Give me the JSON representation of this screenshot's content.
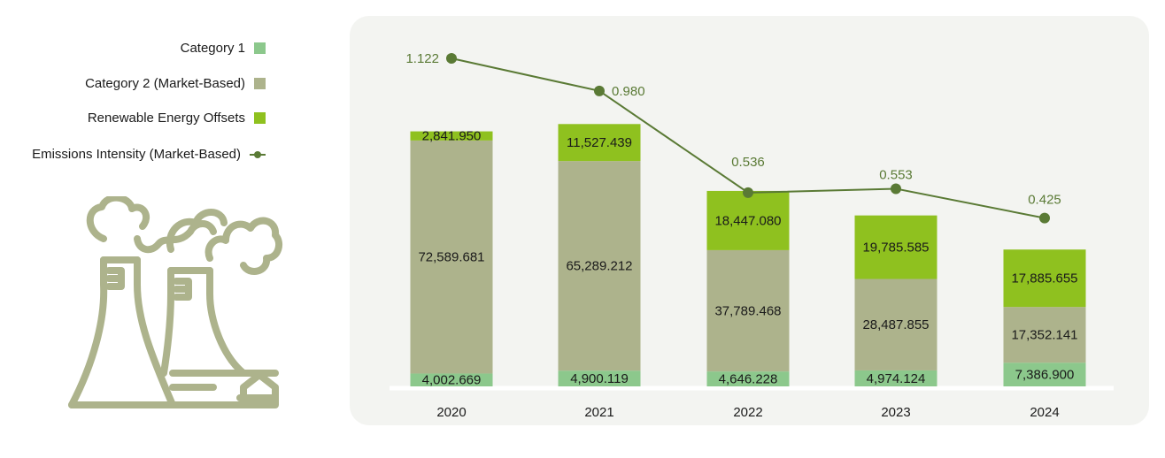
{
  "legend": [
    {
      "label": "Category 1",
      "color": "#8cc88c",
      "kind": "box"
    },
    {
      "label": "Category 2 (Market-Based)",
      "color": "#adb38c",
      "kind": "box"
    },
    {
      "label": "Renewable Energy Offsets",
      "color": "#8fc11f",
      "kind": "box"
    },
    {
      "label": "Emissions Intensity (Market-Based)",
      "color": "#5a7a35",
      "kind": "line"
    }
  ],
  "illustration": {
    "icon": "factory-smokestack-icon",
    "color": "#adb38c"
  },
  "chart_data": {
    "type": "bar",
    "stacked": true,
    "categories": [
      "2020",
      "2021",
      "2022",
      "2023",
      "2024"
    ],
    "series": [
      {
        "name": "Category 1",
        "color": "#8cc88c",
        "values": [
          4002.669,
          4900.119,
          4646.228,
          4974.124,
          7386.9
        ],
        "labels": [
          "4,002.669",
          "4,900.119",
          "4,646.228",
          "4,974.124",
          "7,386.900"
        ]
      },
      {
        "name": "Category 2 (Market-Based)",
        "color": "#adb38c",
        "values": [
          72589.681,
          65289.212,
          37789.468,
          28487.855,
          17352.141
        ],
        "labels": [
          "72,589.681",
          "65,289.212",
          "37,789.468",
          "28,487.855",
          "17,352.141"
        ]
      },
      {
        "name": "Renewable Energy Offsets",
        "color": "#8fc11f",
        "values": [
          2841.95,
          11527.439,
          18447.08,
          19785.585,
          17885.655
        ],
        "labels": [
          "2,841.950",
          "11,527.439",
          "18,447.080",
          "19,785.585",
          "17,885.655"
        ]
      }
    ],
    "line_series": {
      "name": "Emissions Intensity (Market-Based)",
      "color": "#5a7a35",
      "values": [
        1.122,
        0.98,
        0.536,
        0.553,
        0.425
      ],
      "labels": [
        "1.122",
        "0.980",
        "0.536",
        "0.553",
        "0.425"
      ]
    },
    "bar_ylim": [
      0,
      84000
    ],
    "line_ylim": [
      0.25,
      1.18
    ],
    "grid": false
  }
}
